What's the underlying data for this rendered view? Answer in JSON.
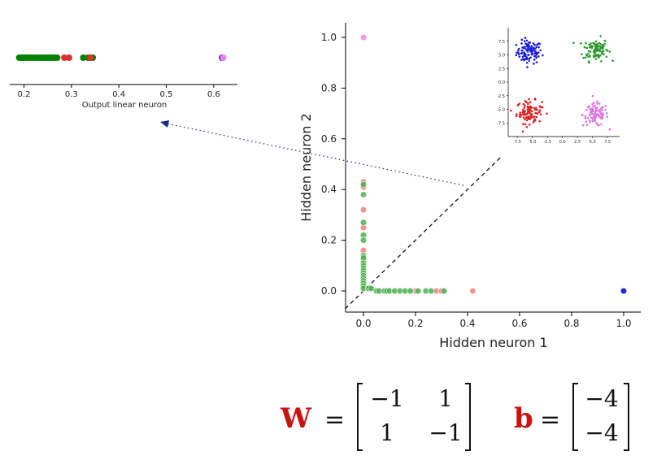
{
  "chart_data": [
    {
      "id": "top-left",
      "type": "scatter",
      "xlabel": "Output linear neuron",
      "xticks": [
        "0.2",
        "0.3",
        "0.4",
        "0.5",
        "0.6"
      ],
      "xlim": [
        0.17,
        0.65
      ],
      "series": [
        {
          "color": "#008000",
          "x": [
            0.19,
            0.195,
            0.2,
            0.205,
            0.21,
            0.215,
            0.22,
            0.225,
            0.23,
            0.235,
            0.24,
            0.245,
            0.25,
            0.255,
            0.26,
            0.265,
            0.27,
            0.325,
            0.335,
            0.345
          ]
        },
        {
          "color": "#e0302a",
          "x": [
            0.285,
            0.295,
            0.34
          ]
        },
        {
          "color": "#0000cc",
          "x": [
            0.618
          ]
        },
        {
          "color": "#ee82ee",
          "x": [
            0.62
          ]
        }
      ]
    },
    {
      "id": "main",
      "type": "scatter",
      "xlabel": "Hidden neuron 1",
      "ylabel": "Hidden neuron 2",
      "xticks": [
        "0.0",
        "0.2",
        "0.4",
        "0.6",
        "0.8",
        "1.0"
      ],
      "yticks": [
        "0.0",
        "0.2",
        "0.4",
        "0.6",
        "0.8",
        "1.0"
      ],
      "xlim": [
        -0.07,
        1.06
      ],
      "ylim": [
        -0.07,
        1.06
      ],
      "diagonal": "dashed",
      "series": [
        {
          "color": "#ee82ee",
          "x": [
            0.0
          ],
          "y": [
            1.0
          ]
        },
        {
          "color": "#0000cc",
          "x": [
            1.0
          ],
          "y": [
            0.0
          ]
        },
        {
          "color": "#ef8080",
          "x": [
            0.0,
            0.0,
            0.0,
            0.0,
            0.0,
            0.0,
            0.0,
            0.0,
            0.2,
            0.28,
            0.3,
            0.42,
            0.0
          ],
          "y": [
            0.43,
            0.41,
            0.32,
            0.25,
            0.16,
            0.12,
            0.08,
            0.06,
            0.0,
            0.0,
            0.0,
            0.0,
            0.02
          ]
        },
        {
          "color": "#4caf50",
          "x": [
            0.0,
            0.0,
            0.0,
            0.0,
            0.0,
            0.0,
            0.0,
            0.0,
            0.0,
            0.0,
            0.0,
            0.0,
            0.0,
            0.0,
            0.0,
            0.0,
            0.0,
            0.0,
            0.02,
            0.03,
            0.05,
            0.06,
            0.08,
            0.09,
            0.1,
            0.12,
            0.14,
            0.16,
            0.18,
            0.21,
            0.24,
            0.26,
            0.31
          ],
          "y": [
            0.42,
            0.38,
            0.27,
            0.22,
            0.2,
            0.14,
            0.13,
            0.11,
            0.1,
            0.09,
            0.08,
            0.07,
            0.06,
            0.05,
            0.04,
            0.03,
            0.02,
            0.01,
            0.01,
            0.01,
            0.0,
            0.0,
            0.0,
            0.0,
            0.0,
            0.0,
            0.0,
            0.0,
            0.0,
            0.0,
            0.0,
            0.0,
            0.0
          ]
        }
      ]
    },
    {
      "id": "inset",
      "type": "scatter",
      "xticks": [
        "-7.5",
        "-5.0",
        "-2.5",
        "0.0",
        "2.5",
        "5.0",
        "7.5"
      ],
      "yticks": [
        "7.5",
        "5.0",
        "2.5",
        "0.0",
        "-2.5",
        "-5.0",
        "-7.5"
      ],
      "xlim": [
        -9,
        9.5
      ],
      "ylim": [
        -10,
        10
      ],
      "series": [
        {
          "color": "#1a1ae0",
          "center": [
            -5.5,
            5.5
          ],
          "spread": 1.4,
          "count": 100
        },
        {
          "color": "#2a9a2a",
          "center": [
            5.5,
            6.0
          ],
          "spread": 1.4,
          "count": 100
        },
        {
          "color": "#e02020",
          "center": [
            -5.5,
            -5.5
          ],
          "spread": 1.4,
          "count": 100
        },
        {
          "color": "#dd77dd",
          "center": [
            5.5,
            -6.0
          ],
          "spread": 1.4,
          "count": 100
        }
      ]
    }
  ],
  "formula": {
    "w_name": "W",
    "w_matrix": [
      [
        "−1",
        "1"
      ],
      [
        "1",
        "−1"
      ]
    ],
    "b_name": "b",
    "b_matrix": [
      "−4",
      "−4"
    ],
    "equals": "="
  }
}
